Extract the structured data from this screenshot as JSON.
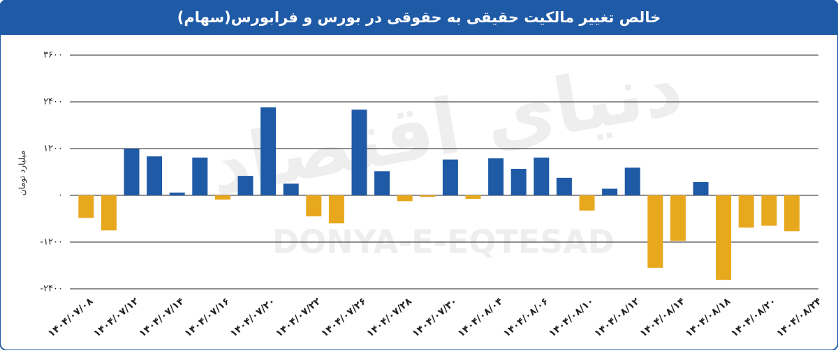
{
  "chart_data": {
    "type": "bar",
    "title": "خالص تغییر مالکیت حقیقی به حقوقی در بورس و فرابورس(سهام)",
    "y_label": "میلیارد تومان",
    "categories": [
      "۱۴۰۴/۰۷/۰۸",
      null,
      "۱۴۰۴/۰۷/۱۲",
      null,
      "۱۴۰۴/۰۷/۱۴",
      null,
      "۱۴۰۴/۰۷/۱۶",
      null,
      "۱۴۰۴/۰۷/۲۰",
      null,
      "۱۴۰۴/۰۷/۲۲",
      null,
      "۱۴۰۴/۰۷/۲۶",
      null,
      "۱۴۰۴/۰۷/۲۸",
      null,
      "۱۴۰۴/۰۷/۳۰",
      null,
      "۱۴۰۴/۰۸/۰۴",
      null,
      "۱۴۰۴/۰۸/۰۶",
      null,
      "۱۴۰۴/۰۸/۱۰",
      null,
      "۱۴۰۴/۰۸/۱۲",
      null,
      "۱۴۰۴/۰۸/۱۴",
      null,
      "۱۴۰۴/۰۸/۱۸",
      null,
      "۱۴۰۴/۰۸/۲۰",
      null,
      "۱۴۰۴/۰۸/۲۴"
    ],
    "values": [
      -580,
      -900,
      1200,
      1000,
      70,
      970,
      -110,
      500,
      2260,
      300,
      -540,
      -720,
      2200,
      620,
      -150,
      -40,
      920,
      -90,
      950,
      680,
      970,
      450,
      -390,
      170,
      710,
      -1860,
      -1170,
      340,
      -2170,
      -830,
      -780,
      -920,
      null
    ],
    "positive_color": "#1f5aa6",
    "negative_color": "#e8a81e",
    "ylim": [
      -2400,
      3600
    ],
    "yticks": [
      {
        "value": -2400,
        "label": "-۲۴۰۰"
      },
      {
        "value": -1200,
        "label": "-۱۲۰۰"
      },
      {
        "value": 0,
        "label": "۰"
      },
      {
        "value": 1200,
        "label": "۱۲۰۰"
      },
      {
        "value": 2400,
        "label": "۲۴۰۰"
      },
      {
        "value": 3600,
        "label": "۳۶۰۰"
      }
    ],
    "grid": true
  },
  "watermark": [
    "دنیای اقتصاد",
    "DONYA-E-EQTESAD"
  ]
}
